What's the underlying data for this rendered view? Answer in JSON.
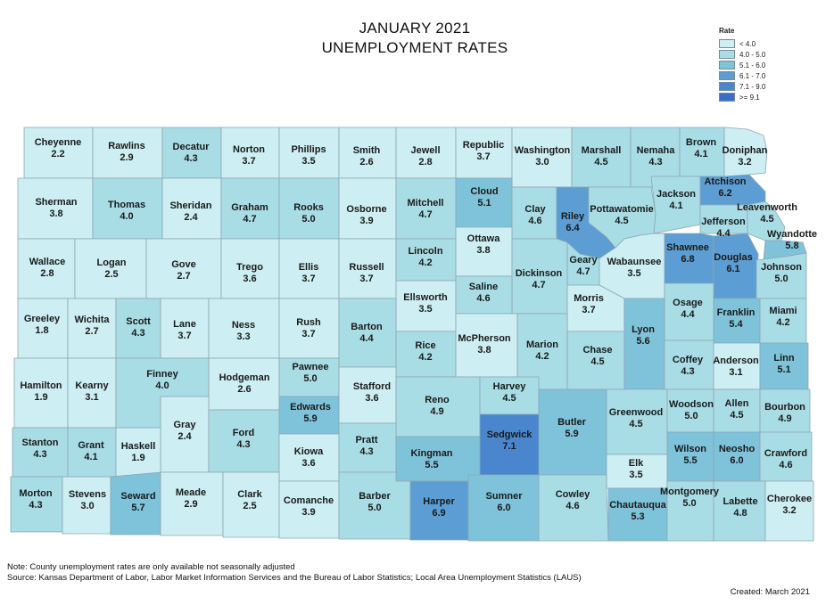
{
  "title_line1": "JANUARY 2021",
  "title_line2": "UNEMPLOYMENT RATES",
  "legend": {
    "title": "Rate",
    "items": [
      {
        "label": "< 4.0",
        "color": "#cdeef2"
      },
      {
        "label": "4.0 - 5.0",
        "color": "#a9dde6"
      },
      {
        "label": "5.1 - 6.0",
        "color": "#7ec3da"
      },
      {
        "label": "6.1 - 7.0",
        "color": "#5c9ed4"
      },
      {
        "label": "7.1 - 9.0",
        "color": "#4a86ce"
      },
      {
        "label": ">= 9.1",
        "color": "#3a6ec6"
      }
    ]
  },
  "counties": [
    {
      "name": "Cheyenne",
      "rate": "2.2"
    },
    {
      "name": "Rawlins",
      "rate": "2.9"
    },
    {
      "name": "Decatur",
      "rate": "4.3"
    },
    {
      "name": "Norton",
      "rate": "3.7"
    },
    {
      "name": "Phillips",
      "rate": "3.5"
    },
    {
      "name": "Smith",
      "rate": "2.6"
    },
    {
      "name": "Jewell",
      "rate": "2.8"
    },
    {
      "name": "Republic",
      "rate": "3.7"
    },
    {
      "name": "Washington",
      "rate": "3.0"
    },
    {
      "name": "Marshall",
      "rate": "4.5"
    },
    {
      "name": "Nemaha",
      "rate": "4.3"
    },
    {
      "name": "Brown",
      "rate": "4.1"
    },
    {
      "name": "Doniphan",
      "rate": "3.2"
    },
    {
      "name": "Sherman",
      "rate": "3.8"
    },
    {
      "name": "Thomas",
      "rate": "4.0"
    },
    {
      "name": "Sheridan",
      "rate": "2.4"
    },
    {
      "name": "Graham",
      "rate": "4.7"
    },
    {
      "name": "Rooks",
      "rate": "5.0"
    },
    {
      "name": "Osborne",
      "rate": "3.9"
    },
    {
      "name": "Mitchell",
      "rate": "4.7"
    },
    {
      "name": "Cloud",
      "rate": "5.1"
    },
    {
      "name": "Clay",
      "rate": "4.6"
    },
    {
      "name": "Riley",
      "rate": "6.4"
    },
    {
      "name": "Pottawatomie",
      "rate": "4.5"
    },
    {
      "name": "Jackson",
      "rate": "4.1"
    },
    {
      "name": "Atchison",
      "rate": "6.2"
    },
    {
      "name": "Jefferson",
      "rate": "4.4"
    },
    {
      "name": "Leavenworth",
      "rate": "4.5"
    },
    {
      "name": "Wyandotte",
      "rate": "5.8"
    },
    {
      "name": "Wallace",
      "rate": "2.8"
    },
    {
      "name": "Logan",
      "rate": "2.5"
    },
    {
      "name": "Gove",
      "rate": "2.7"
    },
    {
      "name": "Trego",
      "rate": "3.6"
    },
    {
      "name": "Ellis",
      "rate": "3.7"
    },
    {
      "name": "Russell",
      "rate": "3.7"
    },
    {
      "name": "Lincoln",
      "rate": "4.2"
    },
    {
      "name": "Ottawa",
      "rate": "3.8"
    },
    {
      "name": "Dickinson",
      "rate": "4.7"
    },
    {
      "name": "Geary",
      "rate": "4.7"
    },
    {
      "name": "Wabaunsee",
      "rate": "3.5"
    },
    {
      "name": "Shawnee",
      "rate": "6.8"
    },
    {
      "name": "Douglas",
      "rate": "6.1"
    },
    {
      "name": "Johnson",
      "rate": "5.0"
    },
    {
      "name": "Ellsworth",
      "rate": "3.5"
    },
    {
      "name": "Saline",
      "rate": "4.6"
    },
    {
      "name": "Morris",
      "rate": "3.7"
    },
    {
      "name": "Osage",
      "rate": "4.4"
    },
    {
      "name": "Franklin",
      "rate": "5.4"
    },
    {
      "name": "Miami",
      "rate": "4.2"
    },
    {
      "name": "Greeley",
      "rate": "1.8"
    },
    {
      "name": "Wichita",
      "rate": "2.7"
    },
    {
      "name": "Scott",
      "rate": "4.3"
    },
    {
      "name": "Lane",
      "rate": "3.7"
    },
    {
      "name": "Ness",
      "rate": "3.3"
    },
    {
      "name": "Rush",
      "rate": "3.7"
    },
    {
      "name": "Barton",
      "rate": "4.4"
    },
    {
      "name": "Rice",
      "rate": "4.2"
    },
    {
      "name": "McPherson",
      "rate": "3.8"
    },
    {
      "name": "Marion",
      "rate": "4.2"
    },
    {
      "name": "Chase",
      "rate": "4.5"
    },
    {
      "name": "Lyon",
      "rate": "5.6"
    },
    {
      "name": "Coffey",
      "rate": "4.3"
    },
    {
      "name": "Anderson",
      "rate": "3.1"
    },
    {
      "name": "Linn",
      "rate": "5.1"
    },
    {
      "name": "Hamilton",
      "rate": "1.9"
    },
    {
      "name": "Kearny",
      "rate": "3.1"
    },
    {
      "name": "Finney",
      "rate": "4.0"
    },
    {
      "name": "Hodgeman",
      "rate": "2.6"
    },
    {
      "name": "Pawnee",
      "rate": "5.0"
    },
    {
      "name": "Stafford",
      "rate": "3.6"
    },
    {
      "name": "Reno",
      "rate": "4.9"
    },
    {
      "name": "Harvey",
      "rate": "4.5"
    },
    {
      "name": "Butler",
      "rate": "5.9"
    },
    {
      "name": "Greenwood",
      "rate": "4.5"
    },
    {
      "name": "Woodson",
      "rate": "5.0"
    },
    {
      "name": "Allen",
      "rate": "4.5"
    },
    {
      "name": "Bourbon",
      "rate": "4.9"
    },
    {
      "name": "Edwards",
      "rate": "5.9"
    },
    {
      "name": "Gray",
      "rate": "2.4"
    },
    {
      "name": "Ford",
      "rate": "4.3"
    },
    {
      "name": "Kiowa",
      "rate": "3.6"
    },
    {
      "name": "Pratt",
      "rate": "4.3"
    },
    {
      "name": "Kingman",
      "rate": "5.5"
    },
    {
      "name": "Sedgwick",
      "rate": "7.1"
    },
    {
      "name": "Stanton",
      "rate": "4.3"
    },
    {
      "name": "Grant",
      "rate": "4.1"
    },
    {
      "name": "Haskell",
      "rate": "1.9"
    },
    {
      "name": "Elk",
      "rate": "3.5"
    },
    {
      "name": "Wilson",
      "rate": "5.5"
    },
    {
      "name": "Neosho",
      "rate": "6.0"
    },
    {
      "name": "Crawford",
      "rate": "4.6"
    },
    {
      "name": "Morton",
      "rate": "4.3"
    },
    {
      "name": "Stevens",
      "rate": "3.0"
    },
    {
      "name": "Seward",
      "rate": "5.7"
    },
    {
      "name": "Meade",
      "rate": "2.9"
    },
    {
      "name": "Clark",
      "rate": "2.5"
    },
    {
      "name": "Comanche",
      "rate": "3.9"
    },
    {
      "name": "Barber",
      "rate": "5.0"
    },
    {
      "name": "Harper",
      "rate": "6.9"
    },
    {
      "name": "Sumner",
      "rate": "6.0"
    },
    {
      "name": "Cowley",
      "rate": "4.6"
    },
    {
      "name": "Chautauqua",
      "rate": "5.3"
    },
    {
      "name": "Montgomery",
      "rate": "5.0"
    },
    {
      "name": "Labette",
      "rate": "4.8"
    },
    {
      "name": "Cherokee",
      "rate": "3.2"
    }
  ],
  "note": "Note: County unemployment rates are only available not seasonally adjusted",
  "source": "Source: Kansas Department of Labor, Labor Market Information Services and the Bureau of Labor Statistics; Local Area Unemployment Statistics (LAUS)",
  "created": "Created:  March 2021"
}
